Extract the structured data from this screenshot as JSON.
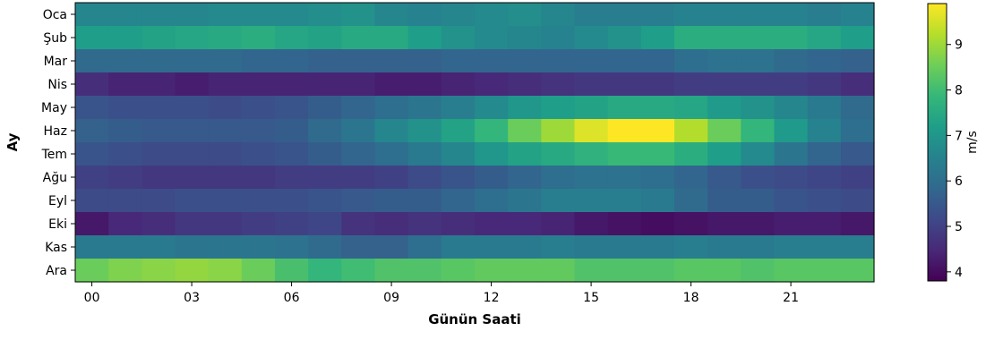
{
  "chart_data": {
    "type": "heatmap",
    "title": "",
    "xlabel": "Günün Saati",
    "ylabel": "Ay",
    "colorbar_label": "m/s",
    "colormap": "viridis",
    "vmin": 3.8,
    "vmax": 9.9,
    "colorbar_ticks": [
      "4",
      "5",
      "6",
      "7",
      "8",
      "9"
    ],
    "colorbar_tick_values": [
      4,
      5,
      6,
      7,
      8,
      9
    ],
    "x_tick_labels": [
      "00",
      "03",
      "06",
      "09",
      "12",
      "15",
      "18",
      "21"
    ],
    "x_tick_hours": [
      0,
      3,
      6,
      9,
      12,
      15,
      18,
      21
    ],
    "hours": [
      0,
      1,
      2,
      3,
      4,
      5,
      6,
      7,
      8,
      9,
      10,
      11,
      12,
      13,
      14,
      15,
      16,
      17,
      18,
      19,
      20,
      21,
      22,
      23
    ],
    "rows": [
      "Oca",
      "Şub",
      "Mar",
      "Nis",
      "May",
      "Haz",
      "Tem",
      "Ağu",
      "Eyl",
      "Eki",
      "Kas",
      "Ara"
    ],
    "values": [
      [
        6.6,
        6.6,
        6.6,
        6.6,
        6.7,
        6.7,
        6.7,
        6.8,
        6.9,
        6.6,
        6.5,
        6.6,
        6.7,
        6.8,
        6.6,
        6.4,
        6.4,
        6.4,
        6.5,
        6.5,
        6.5,
        6.5,
        6.4,
        6.5
      ],
      [
        7.2,
        7.2,
        7.3,
        7.4,
        7.5,
        7.6,
        7.4,
        7.3,
        7.5,
        7.5,
        7.2,
        6.9,
        6.7,
        6.6,
        6.5,
        6.7,
        6.9,
        7.2,
        7.6,
        7.6,
        7.6,
        7.6,
        7.4,
        7.2
      ],
      [
        5.9,
        5.9,
        5.9,
        5.9,
        5.9,
        5.8,
        5.8,
        5.7,
        5.7,
        5.7,
        5.7,
        5.8,
        5.8,
        5.8,
        5.8,
        5.8,
        5.8,
        5.8,
        6.0,
        6.1,
        6.1,
        5.9,
        5.8,
        5.7
      ],
      [
        4.6,
        4.4,
        4.4,
        4.3,
        4.4,
        4.4,
        4.4,
        4.4,
        4.4,
        4.3,
        4.3,
        4.4,
        4.5,
        4.6,
        4.7,
        4.8,
        4.8,
        4.8,
        4.9,
        4.9,
        4.9,
        4.9,
        4.8,
        4.6
      ],
      [
        5.4,
        5.3,
        5.3,
        5.3,
        5.2,
        5.3,
        5.4,
        5.6,
        5.8,
        6.0,
        6.2,
        6.4,
        6.7,
        7.0,
        7.2,
        7.3,
        7.5,
        7.5,
        7.4,
        7.1,
        6.9,
        6.6,
        6.3,
        5.9
      ],
      [
        5.7,
        5.6,
        5.5,
        5.5,
        5.5,
        5.5,
        5.6,
        5.9,
        6.2,
        6.6,
        6.9,
        7.3,
        7.8,
        8.5,
        9.0,
        9.6,
        9.9,
        9.9,
        9.2,
        8.5,
        7.8,
        7.1,
        6.5,
        6.0
      ],
      [
        5.4,
        5.3,
        5.2,
        5.2,
        5.2,
        5.3,
        5.4,
        5.6,
        5.8,
        6.0,
        6.3,
        6.6,
        7.0,
        7.3,
        7.5,
        7.7,
        7.9,
        7.9,
        7.6,
        7.2,
        6.7,
        6.2,
        5.8,
        5.5
      ],
      [
        5.0,
        4.9,
        4.8,
        4.8,
        4.8,
        4.8,
        4.9,
        4.9,
        4.9,
        5.0,
        5.2,
        5.4,
        5.6,
        5.8,
        6.0,
        6.1,
        6.1,
        6.0,
        5.8,
        5.5,
        5.3,
        5.2,
        5.1,
        5.0
      ],
      [
        5.2,
        5.2,
        5.2,
        5.3,
        5.3,
        5.3,
        5.3,
        5.4,
        5.5,
        5.6,
        5.6,
        5.8,
        6.0,
        6.2,
        6.4,
        6.4,
        6.4,
        6.3,
        5.9,
        5.6,
        5.6,
        5.4,
        5.3,
        5.2
      ],
      [
        4.2,
        4.5,
        4.6,
        4.8,
        4.8,
        4.9,
        5.0,
        5.1,
        4.7,
        4.6,
        4.7,
        4.6,
        4.5,
        4.5,
        4.4,
        4.2,
        4.1,
        4.0,
        4.1,
        4.2,
        4.2,
        4.3,
        4.3,
        4.2
      ],
      [
        6.3,
        6.3,
        6.3,
        6.2,
        6.2,
        6.2,
        6.1,
        5.9,
        5.7,
        5.7,
        6.0,
        6.3,
        6.3,
        6.3,
        6.4,
        6.3,
        6.3,
        6.3,
        6.4,
        6.3,
        6.3,
        6.4,
        6.4,
        6.4
      ],
      [
        8.5,
        8.7,
        8.8,
        8.9,
        8.8,
        8.5,
        8.1,
        7.8,
        8.0,
        8.2,
        8.2,
        8.3,
        8.4,
        8.4,
        8.4,
        8.2,
        8.2,
        8.2,
        8.3,
        8.3,
        8.2,
        8.3,
        8.3,
        8.3
      ]
    ]
  }
}
